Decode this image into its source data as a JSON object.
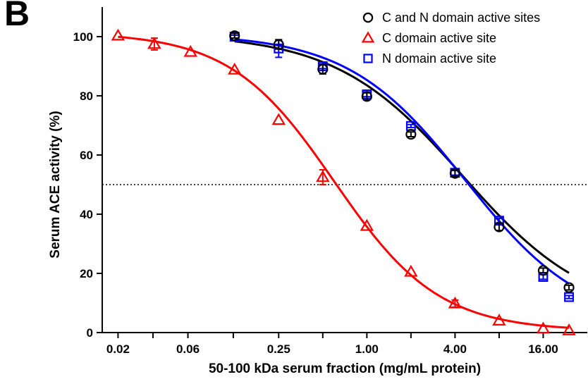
{
  "panel_label": "B",
  "chart_data": {
    "type": "scatter",
    "xlabel": "50-100 kDa serum fraction (mg/mL protein)",
    "ylabel": "Serum ACE activity (%)",
    "x_scale": "log2",
    "xlim": [
      0.0156,
      32
    ],
    "ylim": [
      0,
      110
    ],
    "x_ticks": [
      0.02,
      0.06,
      0.25,
      1.0,
      4.0,
      16.0
    ],
    "x_tick_labels": [
      "0.02",
      "0.06",
      "0.25",
      "1.00",
      "4.00",
      "16.00"
    ],
    "y_ticks": [
      0,
      20,
      40,
      60,
      80,
      100
    ],
    "y_tick_labels": [
      "0",
      "20",
      "40",
      "60",
      "80",
      "100"
    ],
    "reference_line": {
      "y": 50,
      "style": "dotted"
    },
    "legend_position": "top-right",
    "grid": false,
    "series": [
      {
        "name": "C and N domain active sites",
        "marker": "circle",
        "color": "#000000",
        "x": [
          0.125,
          0.25,
          0.5,
          1.0,
          2.0,
          4.0,
          8.0,
          16.0,
          24.0
        ],
        "y": [
          100.3,
          97.3,
          89.0,
          79.8,
          67.0,
          53.8,
          35.7,
          21.0,
          15.2
        ],
        "err": [
          0.8,
          1.5,
          1.6,
          1.2,
          0.8,
          1.0,
          1.2,
          0.8,
          0.8
        ]
      },
      {
        "name": "C domain active site",
        "marker": "triangle",
        "color": "#ff0000",
        "x": [
          0.02,
          0.0354,
          0.0625,
          0.125,
          0.25,
          0.5,
          1.0,
          2.0,
          4.0,
          8.0,
          16.0,
          24.0
        ],
        "y": [
          100.3,
          97.5,
          94.8,
          88.8,
          71.8,
          52.5,
          36.0,
          20.5,
          9.8,
          4.0,
          1.3,
          0.7
        ],
        "err": [
          0.0,
          2.0,
          0.0,
          0.0,
          0.0,
          2.5,
          0.0,
          0.0,
          1.2,
          0.0,
          0.0,
          0.0
        ]
      },
      {
        "name": "N domain active site",
        "marker": "square",
        "color": "#0000ff",
        "x": [
          0.125,
          0.25,
          0.5,
          1.0,
          2.0,
          4.0,
          8.0,
          16.0,
          24.0
        ],
        "y": [
          100.0,
          96.0,
          90.0,
          80.5,
          69.8,
          54.0,
          37.8,
          18.8,
          12.0
        ],
        "err": [
          0.5,
          3.0,
          0.8,
          0.8,
          0.5,
          0.8,
          0.8,
          0.8,
          0.5
        ]
      }
    ],
    "fit_curves": [
      {
        "series": "C and N domain active sites",
        "color": "#000000",
        "top": 101.0,
        "bottom": 5.0,
        "ec50": 4.5,
        "hill": 1.0
      },
      {
        "series": "C domain active site",
        "color": "#ff0000",
        "top": 101.5,
        "bottom": 0.5,
        "ec50": 0.6,
        "hill": 1.22
      },
      {
        "series": "N domain active site",
        "color": "#0000ff",
        "top": 101.0,
        "bottom": 2.0,
        "ec50": 4.7,
        "hill": 1.08
      }
    ]
  }
}
